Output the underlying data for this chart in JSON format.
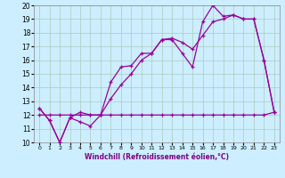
{
  "xlabel": "Windchill (Refroidissement éolien,°C)",
  "bg_color": "#cceeff",
  "line_color": "#990099",
  "grid_color": "#aaccbb",
  "xlim": [
    -0.5,
    23.5
  ],
  "ylim": [
    10,
    20
  ],
  "yticks": [
    10,
    11,
    12,
    13,
    14,
    15,
    16,
    17,
    18,
    19,
    20
  ],
  "xticks": [
    0,
    1,
    2,
    3,
    4,
    5,
    6,
    7,
    8,
    9,
    10,
    11,
    12,
    13,
    14,
    15,
    16,
    17,
    18,
    19,
    20,
    21,
    22,
    23
  ],
  "line1_x": [
    0,
    1,
    2,
    3,
    4,
    5,
    6,
    7,
    8,
    9,
    10,
    11,
    12,
    13,
    14,
    15,
    16,
    17,
    18,
    19,
    20,
    21,
    22,
    23
  ],
  "line1_y": [
    12.5,
    11.6,
    10.0,
    11.8,
    11.5,
    11.2,
    12.0,
    14.4,
    15.5,
    15.6,
    16.5,
    16.5,
    17.5,
    17.5,
    16.5,
    15.5,
    18.8,
    20.0,
    19.2,
    19.3,
    19.0,
    19.0,
    16.0,
    12.2
  ],
  "line2_x": [
    0,
    1,
    2,
    3,
    4,
    5,
    6,
    7,
    8,
    9,
    10,
    11,
    12,
    13,
    14,
    15,
    16,
    17,
    18,
    19,
    20,
    21,
    22,
    23
  ],
  "line2_y": [
    12.5,
    11.6,
    10.0,
    11.8,
    12.2,
    12.0,
    12.0,
    13.2,
    14.2,
    15.0,
    16.0,
    16.5,
    17.5,
    17.6,
    17.3,
    16.8,
    17.8,
    18.8,
    19.0,
    19.3,
    19.0,
    19.0,
    16.0,
    12.2
  ],
  "line3_x": [
    0,
    1,
    2,
    3,
    4,
    5,
    6,
    7,
    8,
    9,
    10,
    11,
    12,
    13,
    14,
    15,
    16,
    17,
    18,
    19,
    20,
    21,
    22,
    23
  ],
  "line3_y": [
    12.0,
    12.0,
    12.0,
    12.0,
    12.0,
    12.0,
    12.0,
    12.0,
    12.0,
    12.0,
    12.0,
    12.0,
    12.0,
    12.0,
    12.0,
    12.0,
    12.0,
    12.0,
    12.0,
    12.0,
    12.0,
    12.0,
    12.0,
    12.2
  ]
}
